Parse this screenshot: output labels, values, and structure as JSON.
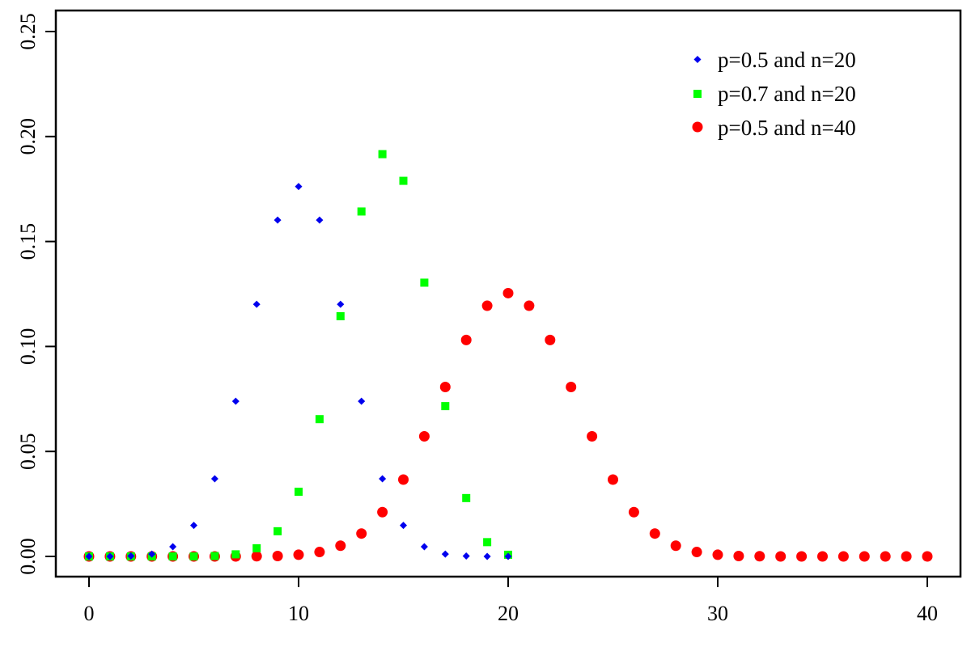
{
  "chart_data": {
    "type": "scatter",
    "title": "",
    "xlabel": "",
    "ylabel": "",
    "xlim": [
      -1.6,
      41.6
    ],
    "ylim": [
      -0.0096,
      0.2596
    ],
    "x_ticks": [
      0,
      10,
      20,
      30,
      40
    ],
    "x_tick_labels": [
      "0",
      "10",
      "20",
      "30",
      "40"
    ],
    "y_ticks": [
      0.0,
      0.05,
      0.1,
      0.15,
      0.2,
      0.25
    ],
    "y_tick_labels": [
      "0.00",
      "0.05",
      "0.10",
      "0.15",
      "0.20",
      "0.25"
    ],
    "grid": false,
    "legend_position": "top-right",
    "series": [
      {
        "name": "p=0.5 and n=20",
        "marker": "diamond",
        "color": "#0000ee",
        "x": [
          0,
          1,
          2,
          3,
          4,
          5,
          6,
          7,
          8,
          9,
          10,
          11,
          12,
          13,
          14,
          15,
          16,
          17,
          18,
          19,
          20
        ],
        "values": [
          0.0,
          0.0,
          0.0002,
          0.0011,
          0.0046,
          0.0148,
          0.037,
          0.0739,
          0.1201,
          0.1602,
          0.1762,
          0.1602,
          0.1201,
          0.0739,
          0.037,
          0.0148,
          0.0046,
          0.0011,
          0.0002,
          0.0,
          0.0
        ]
      },
      {
        "name": "p=0.7 and n=20",
        "marker": "square",
        "color": "#00ff00",
        "x": [
          0,
          1,
          2,
          3,
          4,
          5,
          6,
          7,
          8,
          9,
          10,
          11,
          12,
          13,
          14,
          15,
          16,
          17,
          18,
          19,
          20
        ],
        "values": [
          0.0,
          0.0,
          0.0,
          0.0,
          0.0,
          0.0,
          0.0002,
          0.001,
          0.0039,
          0.012,
          0.0308,
          0.0654,
          0.1144,
          0.1643,
          0.1916,
          0.1789,
          0.1304,
          0.0716,
          0.0278,
          0.0068,
          0.0008
        ]
      },
      {
        "name": "p=0.5 and n=40",
        "marker": "circle",
        "color": "#ff0000",
        "x": [
          0,
          1,
          2,
          3,
          4,
          5,
          6,
          7,
          8,
          9,
          10,
          11,
          12,
          13,
          14,
          15,
          16,
          17,
          18,
          19,
          20,
          21,
          22,
          23,
          24,
          25,
          26,
          27,
          28,
          29,
          30,
          31,
          32,
          33,
          34,
          35,
          36,
          37,
          38,
          39,
          40
        ],
        "values": [
          0.0,
          0.0,
          0.0,
          0.0,
          0.0,
          0.0,
          0.0,
          0.0,
          0.0001,
          0.0002,
          0.0008,
          0.0021,
          0.0051,
          0.0109,
          0.0211,
          0.0366,
          0.0572,
          0.0807,
          0.1031,
          0.1194,
          0.1254,
          0.1194,
          0.1031,
          0.0807,
          0.0572,
          0.0366,
          0.0211,
          0.0109,
          0.0051,
          0.0021,
          0.0008,
          0.0002,
          0.0001,
          0.0,
          0.0,
          0.0,
          0.0,
          0.0,
          0.0,
          0.0,
          0.0
        ]
      }
    ]
  },
  "legend": {
    "items": [
      {
        "label": "p=0.5 and n=20",
        "marker": "diamond",
        "color": "#0000ee"
      },
      {
        "label": "p=0.7 and n=20",
        "marker": "square",
        "color": "#00ff00"
      },
      {
        "label": "p=0.5 and n=40",
        "marker": "circle",
        "color": "#ff0000"
      }
    ]
  }
}
